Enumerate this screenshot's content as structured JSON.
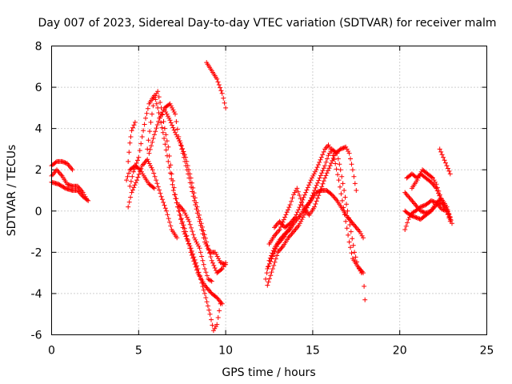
{
  "chart_data": {
    "type": "scatter",
    "title": "Day 007 of 2023, Sidereal Day-to-day VTEC variation (SDTVAR) for receiver malm",
    "xlabel": "GPS time / hours",
    "ylabel": "SDTVAR / TECUs",
    "xlim": [
      0,
      25
    ],
    "ylim": [
      -6,
      8
    ],
    "xticks": [
      "0",
      "5",
      "10",
      "15",
      "20",
      "25"
    ],
    "yticks": [
      "-6",
      "-4",
      "-2",
      "0",
      "2",
      "4",
      "6",
      "8"
    ],
    "grid": true,
    "legend": "none",
    "marker": "plus",
    "color": "#ff0000",
    "tracks": [
      [
        [
          0.0,
          2.2
        ],
        [
          0.3,
          2.4
        ],
        [
          0.6,
          2.4
        ],
        [
          0.9,
          2.3
        ],
        [
          1.2,
          2.0
        ]
      ],
      [
        [
          0.0,
          1.7
        ],
        [
          0.3,
          2.0
        ],
        [
          0.6,
          1.7
        ],
        [
          0.9,
          1.3
        ],
        [
          1.2,
          1.2
        ],
        [
          1.5,
          1.2
        ],
        [
          1.8,
          0.9
        ],
        [
          2.0,
          0.6
        ]
      ],
      [
        [
          0.0,
          1.4
        ],
        [
          0.4,
          1.3
        ],
        [
          0.8,
          1.1
        ],
        [
          1.2,
          1.0
        ],
        [
          1.5,
          1.0
        ],
        [
          1.8,
          0.7
        ],
        [
          2.1,
          0.5
        ]
      ],
      [
        [
          4.4,
          2.4
        ],
        [
          4.5,
          3.3
        ],
        [
          4.6,
          3.9
        ],
        [
          4.8,
          4.3
        ]
      ],
      [
        [
          4.3,
          1.5
        ],
        [
          4.5,
          2.0
        ],
        [
          4.8,
          2.2
        ],
        [
          5.1,
          2.0
        ],
        [
          5.3,
          1.7
        ],
        [
          5.6,
          1.3
        ],
        [
          5.9,
          1.1
        ]
      ],
      [
        [
          4.4,
          0.2
        ],
        [
          4.6,
          0.9
        ],
        [
          4.9,
          1.5
        ],
        [
          5.2,
          2.2
        ],
        [
          5.5,
          2.5
        ],
        [
          5.8,
          2.0
        ],
        [
          6.0,
          1.5
        ],
        [
          6.3,
          0.7
        ],
        [
          6.6,
          0.0
        ],
        [
          6.9,
          -0.9
        ],
        [
          7.2,
          -1.3
        ]
      ],
      [
        [
          4.5,
          1.2
        ],
        [
          4.7,
          1.9
        ],
        [
          5.0,
          2.6
        ],
        [
          5.2,
          3.6
        ],
        [
          5.4,
          4.5
        ],
        [
          5.6,
          5.2
        ],
        [
          5.9,
          5.6
        ],
        [
          6.1,
          5.0
        ],
        [
          6.4,
          3.8
        ],
        [
          6.7,
          2.4
        ],
        [
          7.0,
          1.0
        ],
        [
          7.3,
          0.0
        ],
        [
          7.6,
          -1.0
        ],
        [
          8.0,
          -1.8
        ],
        [
          8.4,
          -2.8
        ],
        [
          8.8,
          -4.0
        ],
        [
          9.1,
          -5.0
        ],
        [
          9.3,
          -5.8
        ],
        [
          9.5,
          -5.5
        ],
        [
          9.7,
          -4.5
        ]
      ],
      [
        [
          5.5,
          3.0
        ],
        [
          5.7,
          4.3
        ],
        [
          5.9,
          5.5
        ],
        [
          6.1,
          5.8
        ],
        [
          6.3,
          5.0
        ],
        [
          6.5,
          4.0
        ],
        [
          6.7,
          3.1
        ],
        [
          6.9,
          1.8
        ],
        [
          7.1,
          0.8
        ],
        [
          7.4,
          -0.2
        ],
        [
          7.7,
          -1.0
        ],
        [
          8.0,
          -2.0
        ],
        [
          8.4,
          -3.0
        ],
        [
          8.8,
          -3.6
        ],
        [
          9.2,
          -4.0
        ],
        [
          9.5,
          -4.2
        ],
        [
          9.8,
          -4.5
        ]
      ],
      [
        [
          5.6,
          2.8
        ],
        [
          5.9,
          3.7
        ],
        [
          6.2,
          4.5
        ],
        [
          6.5,
          5.0
        ],
        [
          6.8,
          5.2
        ],
        [
          7.1,
          4.7
        ],
        [
          7.3,
          3.6
        ],
        [
          7.6,
          2.6
        ],
        [
          7.9,
          1.6
        ],
        [
          8.2,
          0.5
        ],
        [
          8.5,
          -0.5
        ],
        [
          8.8,
          -1.5
        ],
        [
          9.1,
          -2.0
        ],
        [
          9.4,
          -2.0
        ],
        [
          9.7,
          -2.5
        ],
        [
          10.0,
          -2.6
        ]
      ],
      [
        [
          6.5,
          4.9
        ],
        [
          6.8,
          4.4
        ],
        [
          7.1,
          3.8
        ],
        [
          7.4,
          3.3
        ],
        [
          7.7,
          2.6
        ],
        [
          8.0,
          1.6
        ],
        [
          8.3,
          0.4
        ],
        [
          8.6,
          -0.6
        ],
        [
          8.9,
          -1.5
        ],
        [
          9.2,
          -2.4
        ],
        [
          9.5,
          -3.0
        ],
        [
          9.8,
          -2.8
        ],
        [
          10.0,
          -2.5
        ]
      ],
      [
        [
          7.3,
          0.3
        ],
        [
          7.6,
          0.0
        ],
        [
          7.9,
          -0.5
        ],
        [
          8.2,
          -1.3
        ],
        [
          8.5,
          -1.8
        ],
        [
          8.8,
          -2.8
        ],
        [
          9.0,
          -3.3
        ],
        [
          9.2,
          -3.4
        ]
      ],
      [
        [
          8.9,
          7.2
        ],
        [
          9.2,
          6.8
        ],
        [
          9.5,
          6.4
        ],
        [
          9.8,
          5.7
        ],
        [
          10.0,
          5.0
        ]
      ],
      [
        [
          12.3,
          -3.3
        ],
        [
          12.5,
          -2.4
        ],
        [
          12.8,
          -1.8
        ],
        [
          13.1,
          -1.4
        ],
        [
          13.4,
          -1.1
        ],
        [
          13.7,
          -0.9
        ],
        [
          14.0,
          -0.5
        ],
        [
          14.3,
          -0.2
        ],
        [
          14.6,
          0.2
        ],
        [
          14.9,
          0.5
        ],
        [
          15.2,
          0.9
        ],
        [
          15.5,
          1.0
        ],
        [
          15.8,
          1.0
        ],
        [
          16.1,
          0.8
        ],
        [
          16.4,
          0.5
        ],
        [
          16.7,
          0.1
        ],
        [
          17.0,
          -0.3
        ],
        [
          17.4,
          -0.7
        ],
        [
          17.7,
          -1.0
        ],
        [
          17.9,
          -1.3
        ]
      ],
      [
        [
          12.4,
          -3.6
        ],
        [
          12.7,
          -2.8
        ],
        [
          13.0,
          -2.0
        ],
        [
          13.3,
          -1.7
        ],
        [
          13.6,
          -1.3
        ],
        [
          13.9,
          -1.0
        ],
        [
          14.2,
          -0.7
        ],
        [
          14.5,
          -0.2
        ],
        [
          14.8,
          0.4
        ],
        [
          15.1,
          1.0
        ],
        [
          15.4,
          1.6
        ],
        [
          15.7,
          2.2
        ],
        [
          15.9,
          2.7
        ],
        [
          16.1,
          3.0
        ],
        [
          16.4,
          2.8
        ],
        [
          16.6,
          2.0
        ],
        [
          16.8,
          1.0
        ],
        [
          17.0,
          0.0
        ],
        [
          17.2,
          -1.0
        ],
        [
          17.4,
          -2.0
        ],
        [
          17.6,
          -2.7
        ],
        [
          17.9,
          -3.0
        ],
        [
          18.0,
          -4.3
        ]
      ],
      [
        [
          12.4,
          -2.8
        ],
        [
          12.7,
          -2.2
        ],
        [
          13.0,
          -1.6
        ],
        [
          13.3,
          -1.3
        ],
        [
          13.7,
          -0.8
        ],
        [
          14.0,
          -0.3
        ],
        [
          14.3,
          0.3
        ],
        [
          14.6,
          0.9
        ],
        [
          14.9,
          1.5
        ],
        [
          15.2,
          2.0
        ],
        [
          15.5,
          2.6
        ],
        [
          15.7,
          3.0
        ],
        [
          15.9,
          3.2
        ],
        [
          16.1,
          2.9
        ],
        [
          16.3,
          2.3
        ],
        [
          16.5,
          1.5
        ],
        [
          16.7,
          0.5
        ],
        [
          16.9,
          -0.5
        ],
        [
          17.1,
          -1.5
        ],
        [
          17.3,
          -2.3
        ],
        [
          17.6,
          -2.7
        ],
        [
          17.8,
          -3.0
        ]
      ],
      [
        [
          12.5,
          -1.6
        ],
        [
          12.8,
          -1.2
        ],
        [
          13.1,
          -0.9
        ],
        [
          13.4,
          -0.3
        ],
        [
          13.7,
          0.3
        ],
        [
          13.9,
          0.8
        ],
        [
          14.1,
          1.1
        ],
        [
          14.3,
          0.6
        ],
        [
          14.5,
          0.1
        ],
        [
          14.8,
          -0.2
        ],
        [
          15.1,
          0.2
        ],
        [
          15.4,
          0.9
        ],
        [
          15.7,
          1.6
        ],
        [
          16.0,
          2.2
        ],
        [
          16.3,
          2.8
        ],
        [
          16.6,
          3.0
        ],
        [
          16.9,
          3.1
        ],
        [
          17.1,
          2.8
        ],
        [
          17.3,
          2.0
        ],
        [
          17.5,
          1.0
        ]
      ],
      [
        [
          12.8,
          -0.8
        ],
        [
          13.1,
          -0.5
        ],
        [
          13.4,
          -0.8
        ],
        [
          13.7,
          -0.6
        ],
        [
          14.0,
          -0.3
        ]
      ],
      [
        [
          20.3,
          -0.9
        ],
        [
          20.5,
          -0.4
        ],
        [
          20.7,
          -0.1
        ],
        [
          20.9,
          0.0
        ],
        [
          21.2,
          0.2
        ],
        [
          21.5,
          0.3
        ],
        [
          21.8,
          0.5
        ],
        [
          22.1,
          0.4
        ],
        [
          22.4,
          0.1
        ],
        [
          22.7,
          0.0
        ],
        [
          22.9,
          -0.4
        ]
      ],
      [
        [
          20.3,
          0.9
        ],
        [
          20.6,
          0.6
        ],
        [
          20.9,
          0.3
        ],
        [
          21.2,
          0.0
        ],
        [
          21.5,
          -0.1
        ],
        [
          21.8,
          0.0
        ],
        [
          22.1,
          0.3
        ],
        [
          22.4,
          0.4
        ],
        [
          22.7,
          0.1
        ],
        [
          22.9,
          -0.3
        ]
      ],
      [
        [
          20.3,
          0.0
        ],
        [
          20.6,
          -0.2
        ],
        [
          20.9,
          -0.3
        ],
        [
          21.2,
          -0.4
        ],
        [
          21.5,
          -0.2
        ],
        [
          21.8,
          0.0
        ],
        [
          22.1,
          0.4
        ],
        [
          22.4,
          0.6
        ],
        [
          22.7,
          0.2
        ],
        [
          23.0,
          -0.6
        ]
      ],
      [
        [
          20.4,
          1.6
        ],
        [
          20.7,
          1.8
        ],
        [
          21.0,
          1.6
        ],
        [
          21.2,
          1.8
        ],
        [
          21.5,
          1.6
        ],
        [
          21.8,
          1.4
        ],
        [
          22.1,
          1.1
        ],
        [
          22.4,
          0.5
        ],
        [
          22.7,
          0.0
        ],
        [
          22.9,
          -0.5
        ]
      ],
      [
        [
          20.7,
          1.1
        ],
        [
          21.0,
          1.5
        ],
        [
          21.3,
          2.0
        ],
        [
          21.6,
          1.8
        ],
        [
          21.9,
          1.6
        ],
        [
          22.1,
          1.3
        ],
        [
          22.3,
          0.8
        ]
      ],
      [
        [
          22.3,
          3.0
        ],
        [
          22.5,
          2.6
        ],
        [
          22.7,
          2.2
        ],
        [
          22.9,
          1.8
        ]
      ]
    ]
  }
}
